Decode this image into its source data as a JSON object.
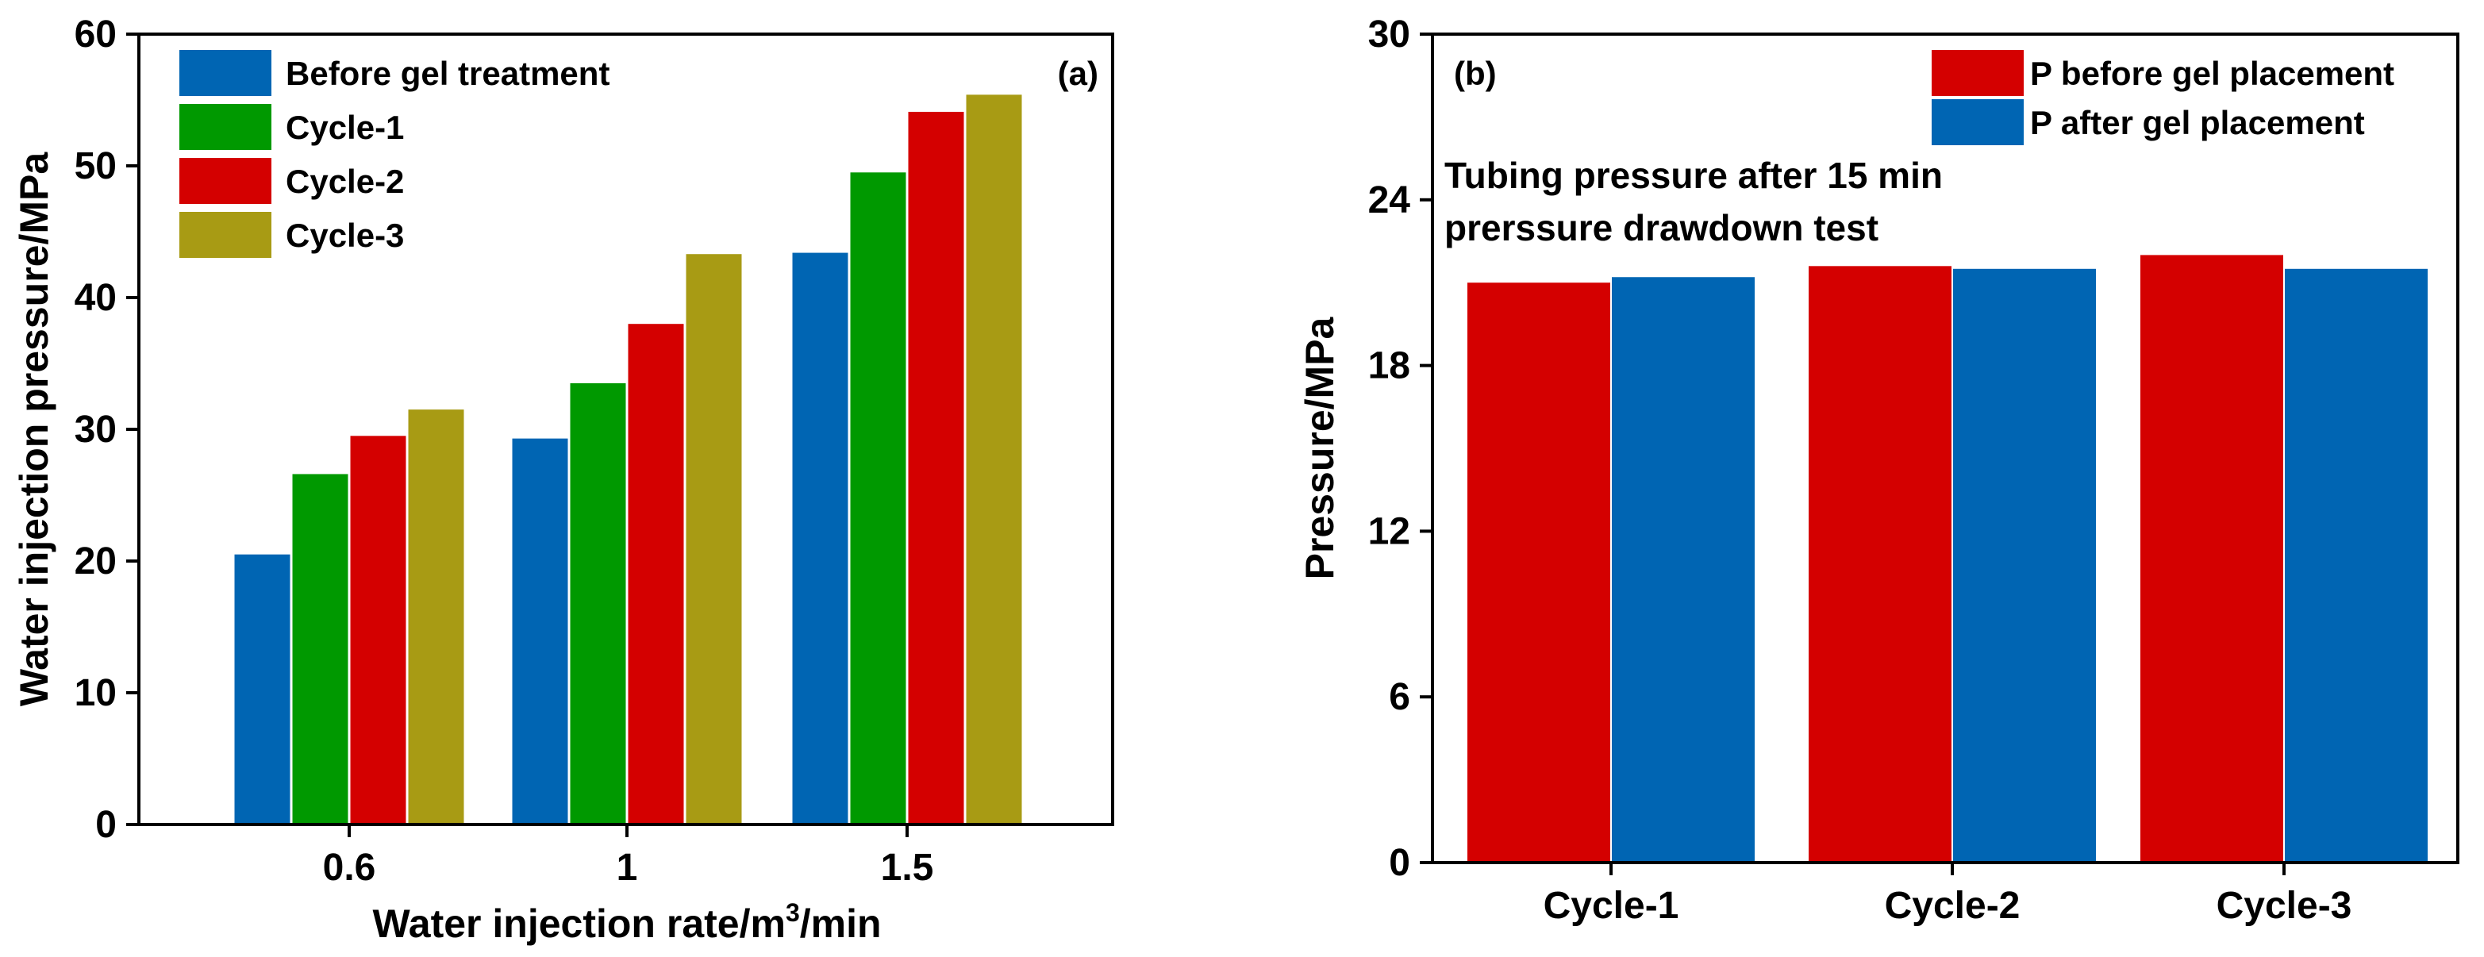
{
  "colors": {
    "blue": "#0065b3",
    "green": "#009900",
    "red": "#d40000",
    "olive": "#a89b14"
  },
  "chart_data": [
    {
      "type": "bar",
      "panel": "(a)",
      "title": "",
      "xlabel": "Water injection rate/m³/min",
      "xlabel_parts": {
        "before": "Water injection rate/m",
        "sup": "3",
        "after": "/min"
      },
      "ylabel": "Water injection pressure/MPa",
      "ylim": [
        0,
        60
      ],
      "yticks": [
        "0",
        "10",
        "20",
        "30",
        "40",
        "50",
        "60"
      ],
      "ytick_values": [
        0,
        10,
        20,
        30,
        40,
        50,
        60
      ],
      "categories": [
        "0.6",
        "1",
        "1.5"
      ],
      "legend_position": "top-left",
      "series": [
        {
          "name": "Before gel treatment",
          "color": "#0065b3",
          "values": [
            20.5,
            29.3,
            43.4
          ]
        },
        {
          "name": "Cycle-1",
          "color": "#009900",
          "values": [
            26.6,
            33.5,
            49.5
          ]
        },
        {
          "name": "Cycle-2",
          "color": "#d40000",
          "values": [
            29.5,
            38.0,
            54.1
          ]
        },
        {
          "name": "Cycle-3",
          "color": "#a89b14",
          "values": [
            31.5,
            43.3,
            55.4
          ]
        }
      ]
    },
    {
      "type": "bar",
      "panel": "(b)",
      "title": "",
      "xlabel": "",
      "ylabel": "Pressure/MPa",
      "ylim": [
        0,
        30
      ],
      "yticks": [
        "0",
        "6",
        "12",
        "18",
        "24",
        "30"
      ],
      "ytick_values": [
        0,
        6,
        12,
        18,
        24,
        30
      ],
      "categories": [
        "Cycle-1",
        "Cycle-2",
        "Cycle-3"
      ],
      "legend_position": "top-right",
      "annotation": [
        "Tubing pressure after 15 min",
        "prerssure drawdown test"
      ],
      "series": [
        {
          "name": "P before gel placement",
          "color": "#d40000",
          "values": [
            21.0,
            21.6,
            22.0
          ]
        },
        {
          "name": "P after gel placement",
          "color": "#0065b3",
          "values": [
            21.2,
            21.5,
            21.5
          ]
        }
      ]
    }
  ]
}
